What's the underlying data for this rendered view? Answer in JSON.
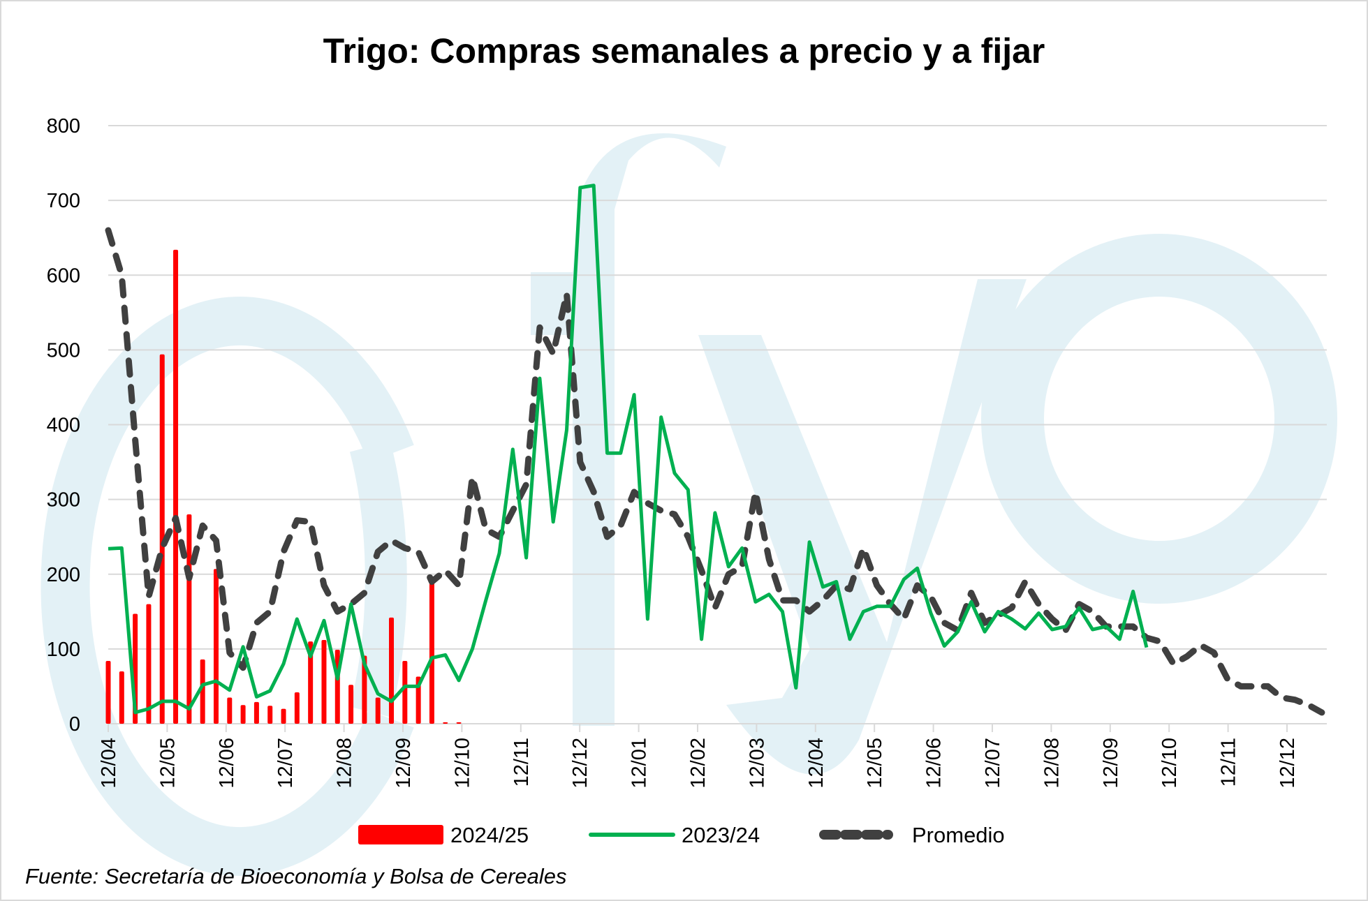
{
  "chart_data": {
    "type": "bar+line",
    "title": "Trigo: Compras semanales a precio y a fijar",
    "source": "Fuente: Secretaría de Bioeconomía y Bolsa de Cereales",
    "ylim": [
      0,
      800
    ],
    "yticks": [
      0,
      100,
      200,
      300,
      400,
      500,
      600,
      700,
      800
    ],
    "grid": true,
    "legend_position": "bottom",
    "x_tick_labels": [
      "12/04",
      "12/05",
      "12/06",
      "12/07",
      "12/08",
      "12/09",
      "12/10",
      "12/11",
      "12/12",
      "12/01",
      "12/02",
      "12/03",
      "12/04",
      "12/05",
      "12/06",
      "12/07",
      "12/08",
      "12/09",
      "12/10",
      "12/11",
      "12/12"
    ],
    "x_unit": "weekly, starting 12/04",
    "series": [
      {
        "name": "2024/25",
        "type": "bar",
        "color": "#ff0000",
        "values": [
          84,
          70,
          147,
          160,
          494,
          634,
          280,
          86,
          207,
          35,
          25,
          29,
          24,
          20,
          42,
          110,
          112,
          99,
          52,
          91,
          35,
          142,
          84,
          63,
          193,
          2,
          2
        ]
      },
      {
        "name": "2023/24",
        "type": "line",
        "color": "#00b050",
        "values": [
          234,
          235,
          15,
          20,
          30,
          30,
          20,
          52,
          57,
          45,
          103,
          36,
          44,
          80,
          140,
          90,
          138,
          60,
          160,
          80,
          40,
          30,
          50,
          50,
          88,
          92,
          58,
          100,
          165,
          228,
          367,
          222,
          462,
          270,
          393,
          717,
          720,
          362,
          362,
          440,
          140,
          410,
          335,
          313,
          113,
          282,
          210,
          235,
          163,
          173,
          150,
          48,
          243,
          183,
          190,
          113,
          150,
          157,
          157,
          193,
          208,
          148,
          104,
          123,
          163,
          123,
          150,
          140,
          127,
          148,
          126,
          130,
          155,
          126,
          130,
          113,
          177,
          102
        ]
      },
      {
        "name": "Promedio",
        "type": "dashed-line",
        "color": "#404040",
        "values": [
          660,
          600,
          380,
          170,
          235,
          275,
          195,
          265,
          245,
          95,
          75,
          135,
          150,
          230,
          272,
          270,
          185,
          150,
          160,
          175,
          230,
          245,
          235,
          230,
          190,
          205,
          185,
          330,
          260,
          250,
          285,
          320,
          530,
          495,
          575,
          350,
          310,
          250,
          265,
          310,
          295,
          285,
          280,
          250,
          205,
          155,
          200,
          210,
          310,
          220,
          165,
          165,
          150,
          165,
          185,
          180,
          235,
          185,
          160,
          140,
          185,
          170,
          135,
          125,
          175,
          135,
          145,
          155,
          190,
          160,
          140,
          125,
          160,
          150,
          130,
          130,
          130,
          115,
          110,
          80,
          90,
          105,
          95,
          60,
          50,
          50,
          50,
          35,
          32,
          25,
          15
        ]
      }
    ],
    "watermark_color": "#e3f1f6"
  }
}
